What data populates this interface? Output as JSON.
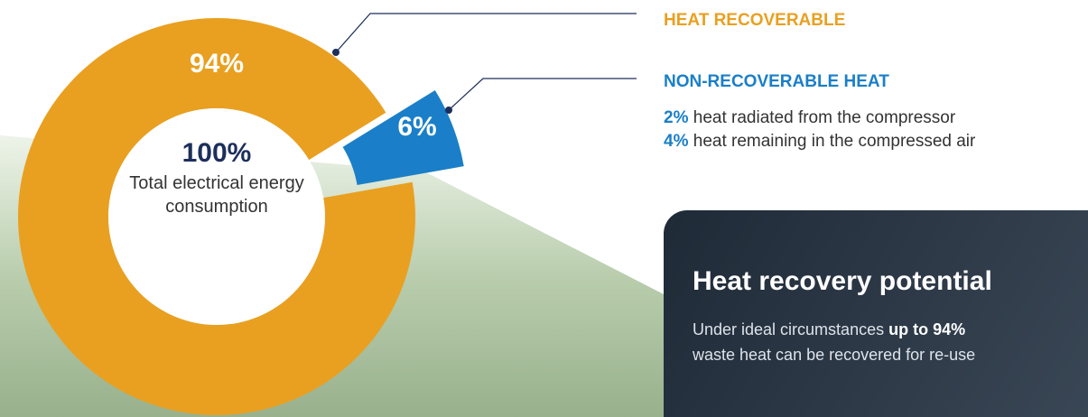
{
  "chart_data": {
    "type": "pie",
    "categories": [
      "HEAT RECOVERABLE",
      "NON-RECOVERABLE HEAT"
    ],
    "values": [
      94,
      6
    ],
    "value_labels": [
      "94%",
      "6%"
    ],
    "colors": [
      "#e9a020",
      "#1a7fc8"
    ],
    "center_value": "100%",
    "center_label": "Total electrical energy consumption"
  },
  "breakdown": [
    {
      "amount": "2%",
      "text": "heat radiated from the compressor"
    },
    {
      "amount": "4%",
      "text": "heat remaining in the compressed air"
    }
  ],
  "panel": {
    "title": "Heat recovery potential",
    "body_start": "Under ideal circumstances",
    "body_bold": "up to 94%",
    "body_end": "waste heat can be recovered for re-use"
  }
}
